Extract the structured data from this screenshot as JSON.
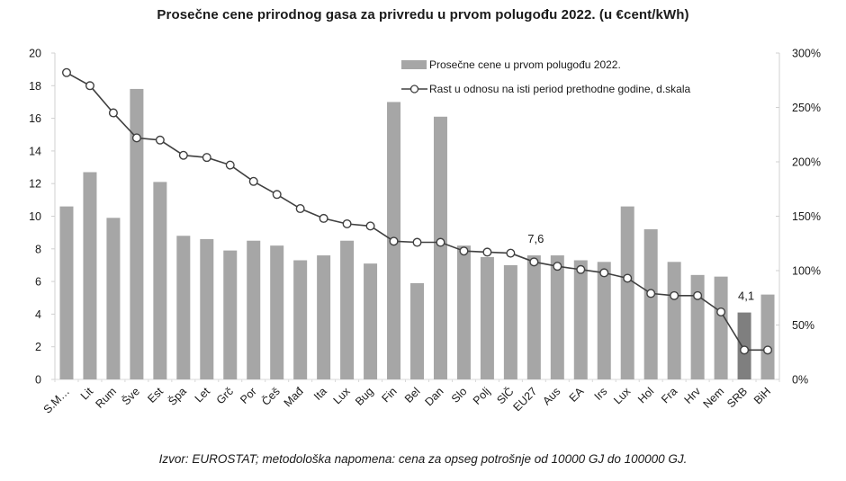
{
  "chart_data": {
    "type": "bar",
    "title": "Prosečne cene prirodnog gasa za privredu u prvom polugođu 2022. (u €cent/kWh)",
    "source_note": "Izvor: EUROSTAT; metodološka napomena: cena za opseg potrošnje od 10000 GJ do 100000 GJ.",
    "categories": [
      "S.M…",
      "Lit",
      "Rum",
      "Šve",
      "Est",
      "Špa",
      "Let",
      "Grč",
      "Por",
      "Češ",
      "Mađ",
      "Ita",
      "Lux",
      "Bug",
      "Fin",
      "Bel",
      "Dan",
      "Slo",
      "Polj",
      "SlČ",
      "EU27",
      "Aus",
      "EA",
      "Irs",
      "Lux",
      "Hol",
      "Fra",
      "Hrv",
      "Nem",
      "SRB",
      "BiH"
    ],
    "series": [
      {
        "name": "Prosečne cene u prvom polugođu 2022.",
        "type": "bar",
        "axis": "left",
        "color": "#a6a6a6",
        "highlight": {
          "SRB": "#7f7f7f"
        },
        "values": [
          10.6,
          12.7,
          9.9,
          17.8,
          12.1,
          8.8,
          8.6,
          7.9,
          8.5,
          8.2,
          7.3,
          7.6,
          8.5,
          7.1,
          17.0,
          5.9,
          16.1,
          8.2,
          7.5,
          7.0,
          7.6,
          7.6,
          7.3,
          7.2,
          10.6,
          9.2,
          7.2,
          6.4,
          6.3,
          4.1,
          5.2
        ]
      },
      {
        "name": "Rast u odnosu na isti period prethodne godine, d.skala",
        "type": "line",
        "axis": "right",
        "color": "#404040",
        "marker": "open-circle",
        "values": [
          282,
          270,
          245,
          222,
          220,
          206,
          204,
          197,
          182,
          170,
          157,
          148,
          143,
          141,
          127,
          126,
          126,
          118,
          117,
          116,
          108,
          104,
          101,
          98,
          93,
          79,
          77,
          77,
          62,
          27,
          27
        ]
      }
    ],
    "left_axis": {
      "ylim": [
        0,
        20
      ],
      "ticks": [
        "0",
        "2",
        "4",
        "6",
        "8",
        "10",
        "12",
        "14",
        "16",
        "18",
        "20"
      ],
      "tick_values": [
        0,
        2,
        4,
        6,
        8,
        10,
        12,
        14,
        16,
        18,
        20
      ]
    },
    "right_axis": {
      "ylim": [
        0,
        300
      ],
      "ticks": [
        "0%",
        "50%",
        "100%",
        "150%",
        "200%",
        "250%",
        "300%"
      ],
      "tick_values": [
        0,
        50,
        100,
        150,
        200,
        250,
        300
      ]
    },
    "annotations": [
      {
        "category": "EU27",
        "text": "7,6"
      },
      {
        "category": "SRB",
        "text": "4,1"
      }
    ],
    "legend": {
      "position": "top-right",
      "entries": [
        "Prosečne cene u prvom polugođu 2022.",
        "Rast u odnosu na isti period prethodne godine, d.skala"
      ]
    },
    "grid": false,
    "xlabel": "",
    "ylabel": ""
  }
}
